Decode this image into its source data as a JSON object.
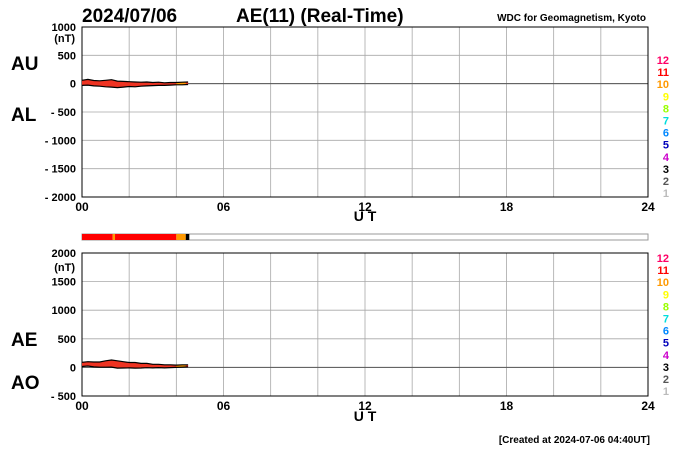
{
  "header": {
    "date": "2024/07/06",
    "title": "AE(11) (Real-Time)",
    "source": "WDC for Geomagnetism, Kyoto"
  },
  "footer": {
    "created": "[Created at 2024-07-06 04:40UT]"
  },
  "station_legend": {
    "numbers": [
      "12",
      "11",
      "10",
      "9",
      "8",
      "7",
      "6",
      "5",
      "4",
      "3",
      "2",
      "1"
    ],
    "colors": [
      "#ff0066",
      "#ff0000",
      "#ff9900",
      "#ffff00",
      "#99ff00",
      "#00dddd",
      "#0088ff",
      "#0000bb",
      "#cc00cc",
      "#000000",
      "#555555",
      "#bbbbbb"
    ]
  },
  "status_bar": {
    "segments": [
      {
        "from": 0.0,
        "to": 1.3,
        "station_count": "11",
        "color": "#ff0000"
      },
      {
        "from": 1.3,
        "to": 1.4,
        "station_count": "10",
        "color": "#ff9900"
      },
      {
        "from": 1.4,
        "to": 4.0,
        "station_count": "11",
        "color": "#ff0000"
      },
      {
        "from": 4.0,
        "to": 4.4,
        "station_count": "10",
        "color": "#ff9900"
      },
      {
        "from": 4.4,
        "to": 4.55,
        "station_count": "3",
        "color": "#000000"
      }
    ],
    "xlim": [
      0,
      24
    ]
  },
  "chart_data": [
    {
      "type": "line",
      "panel": "AU-AL",
      "ylabel_top": "AU",
      "ylabel_bottom": "AL",
      "unit": "(nT)",
      "xlabel": "U T",
      "xlim": [
        0,
        24
      ],
      "ylim": [
        -2000,
        1000
      ],
      "xticks": [
        "00",
        "06",
        "12",
        "18",
        "24"
      ],
      "xtick_values": [
        0,
        6,
        12,
        18,
        24
      ],
      "yticks": [
        "1000",
        "500",
        "0",
        "- 500",
        "- 1000",
        "- 1500",
        "- 2000"
      ],
      "ytick_values": [
        1000,
        500,
        0,
        -500,
        -1000,
        -1500,
        -2000
      ],
      "grid": true,
      "series": [
        {
          "name": "AU",
          "x": [
            0.0,
            0.25,
            0.5,
            0.75,
            1.0,
            1.25,
            1.5,
            1.75,
            2.0,
            2.25,
            2.5,
            2.75,
            3.0,
            3.25,
            3.5,
            3.75,
            4.0,
            4.25,
            4.5
          ],
          "y": [
            60,
            75,
            55,
            50,
            60,
            70,
            45,
            40,
            35,
            30,
            25,
            30,
            20,
            25,
            15,
            20,
            20,
            25,
            30
          ]
        },
        {
          "name": "AL",
          "x": [
            0.0,
            0.25,
            0.5,
            0.75,
            1.0,
            1.25,
            1.5,
            1.75,
            2.0,
            2.25,
            2.5,
            2.75,
            3.0,
            3.25,
            3.5,
            3.75,
            4.0,
            4.25,
            4.5
          ],
          "y": [
            -30,
            -25,
            -40,
            -45,
            -55,
            -60,
            -70,
            -60,
            -50,
            -55,
            -45,
            -40,
            -35,
            -30,
            -30,
            -25,
            -20,
            -20,
            -15
          ]
        }
      ]
    },
    {
      "type": "line",
      "panel": "AE-AO",
      "ylabel_top": "AE",
      "ylabel_bottom": "AO",
      "unit": "(nT)",
      "xlabel": "U T",
      "xlim": [
        0,
        24
      ],
      "ylim": [
        -500,
        2000
      ],
      "xticks": [
        "00",
        "06",
        "12",
        "18",
        "24"
      ],
      "xtick_values": [
        0,
        6,
        12,
        18,
        24
      ],
      "yticks": [
        "2000",
        "1500",
        "1000",
        "500",
        "0",
        "- 500"
      ],
      "ytick_values": [
        2000,
        1500,
        1000,
        500,
        0,
        -500
      ],
      "grid": true,
      "series": [
        {
          "name": "AE",
          "x": [
            0.0,
            0.25,
            0.5,
            0.75,
            1.0,
            1.25,
            1.5,
            1.75,
            2.0,
            2.25,
            2.5,
            2.75,
            3.0,
            3.25,
            3.5,
            3.75,
            4.0,
            4.25,
            4.5
          ],
          "y": [
            90,
            100,
            95,
            95,
            115,
            130,
            115,
            100,
            85,
            85,
            70,
            70,
            55,
            55,
            45,
            45,
            40,
            45,
            45
          ]
        },
        {
          "name": "AO",
          "x": [
            0.0,
            0.25,
            0.5,
            0.75,
            1.0,
            1.25,
            1.5,
            1.75,
            2.0,
            2.25,
            2.5,
            2.75,
            3.0,
            3.25,
            3.5,
            3.75,
            4.0,
            4.25,
            4.5
          ],
          "y": [
            15,
            25,
            8,
            3,
            3,
            5,
            -12,
            -10,
            -8,
            -12,
            -10,
            -5,
            -8,
            -3,
            -8,
            -3,
            0,
            3,
            8
          ]
        }
      ]
    }
  ]
}
